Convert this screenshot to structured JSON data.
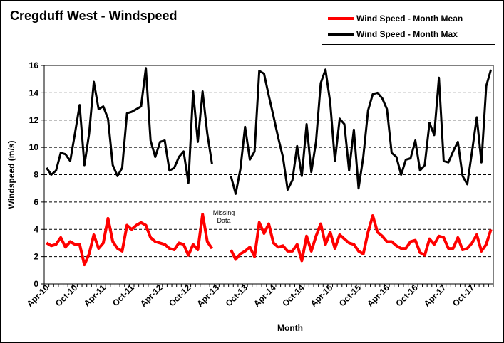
{
  "chart_data": {
    "type": "line",
    "title": "Cregduff West - Windspeed",
    "xlabel": "Month",
    "ylabel": "Windspeed (m/s)",
    "ylim": [
      0,
      16
    ],
    "y_ticks": [
      "0",
      "2",
      "4",
      "6",
      "8",
      "10",
      "12",
      "14",
      "16"
    ],
    "x_tick_labels": [
      "Apr-10",
      "Oct-10",
      "Apr-11",
      "Oct-11",
      "Apr-12",
      "Oct-12",
      "Apr-13",
      "Oct-13",
      "Apr-14",
      "Oct-14",
      "Apr-15",
      "Oct-15",
      "Apr-16",
      "Oct-16",
      "Apr-17",
      "Oct-17"
    ],
    "grid": "horizontal-dashed",
    "legend_position": "top-right",
    "annotation": [
      "Missing",
      "Data"
    ],
    "x_start_label": "Apr-10",
    "series": [
      {
        "name": "Wind Speed - Month Mean",
        "color": "#ff0000",
        "values": [
          3.0,
          2.8,
          2.9,
          3.4,
          2.7,
          3.1,
          2.9,
          2.9,
          1.4,
          2.2,
          3.6,
          2.6,
          3.0,
          4.8,
          3.1,
          2.6,
          2.4,
          4.3,
          4.0,
          4.3,
          4.5,
          4.3,
          3.4,
          3.1,
          3.0,
          2.9,
          2.6,
          2.5,
          3.0,
          2.9,
          2.1,
          2.9,
          2.5,
          5.1,
          3.1,
          2.6,
          null,
          null,
          null,
          2.5,
          1.8,
          2.2,
          2.4,
          2.7,
          2.0,
          4.5,
          3.7,
          4.4,
          3.0,
          2.7,
          2.8,
          2.4,
          2.4,
          2.9,
          1.7,
          3.5,
          2.4,
          3.5,
          4.4,
          2.9,
          3.8,
          2.6,
          3.6,
          3.3,
          3.0,
          2.9,
          2.4,
          2.2,
          3.8,
          5.0,
          3.8,
          3.5,
          3.1,
          3.1,
          2.8,
          2.6,
          2.6,
          3.1,
          3.2,
          2.3,
          2.1,
          3.3,
          2.9,
          3.5,
          3.4,
          2.6,
          2.6,
          3.4,
          2.5,
          2.6,
          3.0,
          3.6,
          2.4,
          2.9,
          4.0
        ]
      },
      {
        "name": "Wind Speed - Month Max",
        "color": "#000000",
        "values": [
          8.5,
          8.0,
          8.3,
          9.6,
          9.5,
          9.0,
          11.0,
          13.1,
          8.7,
          11.0,
          14.8,
          12.8,
          13.0,
          12.1,
          8.7,
          7.9,
          8.5,
          12.5,
          12.6,
          12.8,
          13.0,
          15.8,
          10.5,
          9.3,
          10.4,
          10.5,
          8.3,
          8.5,
          9.3,
          9.7,
          7.4,
          14.1,
          10.4,
          14.1,
          11.0,
          8.8,
          null,
          null,
          null,
          7.9,
          6.6,
          8.4,
          11.5,
          9.1,
          9.7,
          15.6,
          15.4,
          13.8,
          12.3,
          10.7,
          9.3,
          6.9,
          7.6,
          10.1,
          7.9,
          11.7,
          8.2,
          10.4,
          14.7,
          15.7,
          13.3,
          9.0,
          12.1,
          11.7,
          8.3,
          11.3,
          7.0,
          9.3,
          12.7,
          13.9,
          14.0,
          13.6,
          12.8,
          9.6,
          9.3,
          8.0,
          9.1,
          9.2,
          10.5,
          8.3,
          8.7,
          11.8,
          10.9,
          15.1,
          9.0,
          8.9,
          9.7,
          10.4,
          7.9,
          7.3,
          9.7,
          12.2,
          8.9,
          14.5,
          15.7
        ]
      }
    ]
  }
}
